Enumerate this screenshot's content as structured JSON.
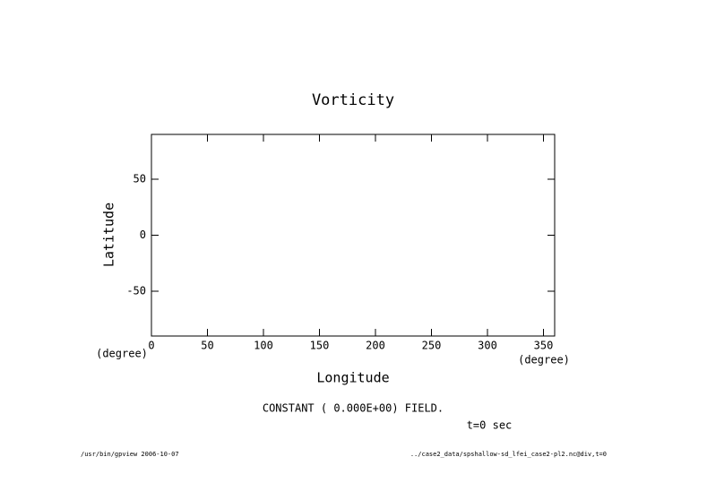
{
  "chart_data": {
    "type": "contour",
    "title": "Vorticity",
    "x_label": "Longitude",
    "x_unit": "(degree)",
    "y_label": "Latitude",
    "y_unit": "(degree)",
    "xlim": [
      0,
      360
    ],
    "xticks": [
      0,
      50,
      100,
      150,
      200,
      250,
      300,
      350
    ],
    "ylim": [
      -90,
      90
    ],
    "yticks": [
      -50,
      0,
      50
    ],
    "message": "CONSTANT ( 0.000E+00) FIELD.",
    "time_label": "t=0 sec",
    "footer_left": "/usr/bin/gpview  2006-10-07",
    "footer_right": "../case2_data/spshallow-sd_lfei_case2-pl2.nc@div,t=0"
  }
}
